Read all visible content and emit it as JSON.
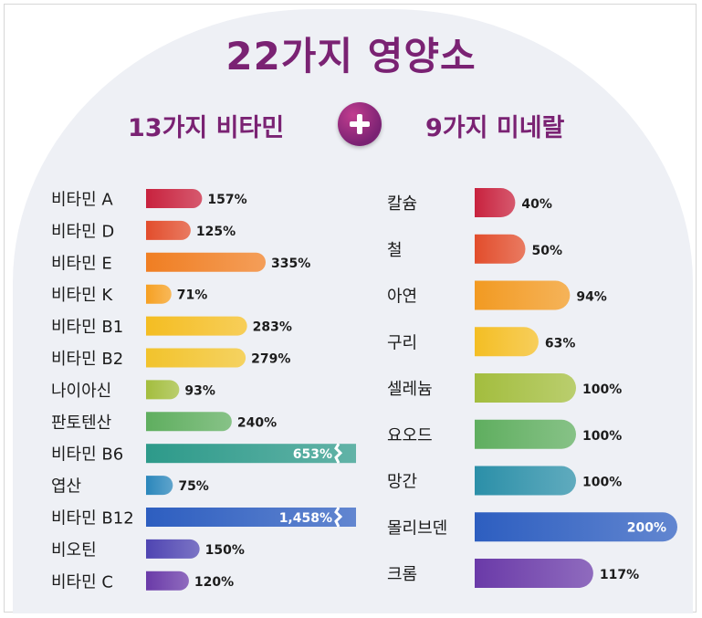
{
  "title": "22가지 영양소",
  "header": {
    "left_label": "13가지 비타민",
    "right_label": "9가지 미네랄"
  },
  "colors": {
    "title": "#7a2273",
    "plus": "#a3307f"
  },
  "chart_data": [
    {
      "type": "bar",
      "orientation": "horizontal",
      "title": "",
      "categories": [
        "비타민 A",
        "비타민 D",
        "비타민 E",
        "비타민 K",
        "비타민 B1",
        "비타민 B2",
        "나이아신",
        "판토텐산",
        "비타민 B6",
        "엽산",
        "비타민 B12",
        "비오틴",
        "비타민 C"
      ],
      "values": [
        157,
        125,
        335,
        71,
        283,
        279,
        93,
        240,
        653,
        75,
        1458,
        150,
        120
      ],
      "labels": [
        "157%",
        "125%",
        "335%",
        "71%",
        "283%",
        "279%",
        "93%",
        "240%",
        "653%",
        "75%",
        "1,458%",
        "150%",
        "120%"
      ],
      "colors": [
        "#c8223e",
        "#e24d2c",
        "#f07e22",
        "#f6a022",
        "#f4bd22",
        "#f2c32c",
        "#a3bd3e",
        "#5fae5f",
        "#2d9a8a",
        "#2a86bb",
        "#2d5ec0",
        "#4f45b2",
        "#6a3aa8"
      ],
      "truncated": [
        false,
        false,
        false,
        false,
        false,
        false,
        false,
        false,
        true,
        false,
        true,
        false,
        false
      ]
    },
    {
      "type": "bar",
      "orientation": "horizontal",
      "title": "",
      "categories": [
        "칼슘",
        "철",
        "아연",
        "구리",
        "셀레늄",
        "요오드",
        "망간",
        "몰리브덴",
        "크롬"
      ],
      "values": [
        40,
        50,
        94,
        63,
        100,
        100,
        100,
        200,
        117
      ],
      "labels": [
        "40%",
        "50%",
        "94%",
        "63%",
        "100%",
        "100%",
        "100%",
        "200%",
        "117%"
      ],
      "colors": [
        "#c8223e",
        "#e24d2c",
        "#f29a22",
        "#f4be24",
        "#a3bd3e",
        "#5fae5f",
        "#2b8fa8",
        "#2d5ec0",
        "#6a3aa8"
      ]
    }
  ]
}
